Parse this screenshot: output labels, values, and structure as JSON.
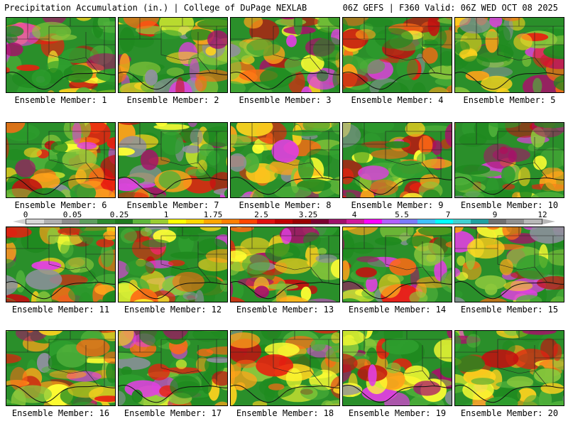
{
  "header": {
    "left": "Precipitation Accumulation (in.) | College of DuPage NEXLAB",
    "right": "06Z GEFS | F360 Valid: 06Z WED OCT 08 2025"
  },
  "colorbar": {
    "tick_labels": [
      "0",
      "0.05",
      "0.25",
      "1",
      "1.75",
      "2.5",
      "3.25",
      "4",
      "5.5",
      "7",
      "9",
      "12"
    ],
    "colors": [
      "#d8d8d8",
      "#b0b0b0",
      "#8c8c8c",
      "#5e9e5e",
      "#2e8b2e",
      "#1f7a1f",
      "#5fb63c",
      "#9acd32",
      "#ffff00",
      "#ffd700",
      "#ffa500",
      "#ff7f00",
      "#ff4500",
      "#e01010",
      "#c00000",
      "#9a0000",
      "#7a0030",
      "#a0106a",
      "#d01a9a",
      "#ff00ff",
      "#b060ff",
      "#7a7aff",
      "#40c0ff",
      "#00ffff",
      "#40d0d0",
      "#20a0a0",
      "#707070",
      "#909090",
      "#b8b8b8"
    ]
  },
  "panels": [
    {
      "label": "Ensemble Member: 1"
    },
    {
      "label": "Ensemble Member: 2"
    },
    {
      "label": "Ensemble Member: 3"
    },
    {
      "label": "Ensemble Member: 4"
    },
    {
      "label": "Ensemble Member: 5"
    },
    {
      "label": "Ensemble Member: 6"
    },
    {
      "label": "Ensemble Member: 7"
    },
    {
      "label": "Ensemble Member: 8"
    },
    {
      "label": "Ensemble Member: 9"
    },
    {
      "label": "Ensemble Member: 10"
    },
    {
      "label": "Ensemble Member: 11"
    },
    {
      "label": "Ensemble Member: 12"
    },
    {
      "label": "Ensemble Member: 13"
    },
    {
      "label": "Ensemble Member: 14"
    },
    {
      "label": "Ensemble Member: 15"
    },
    {
      "label": "Ensemble Member: 16"
    },
    {
      "label": "Ensemble Member: 17"
    },
    {
      "label": "Ensemble Member: 18"
    },
    {
      "label": "Ensemble Member: 19"
    },
    {
      "label": "Ensemble Member: 20"
    }
  ]
}
